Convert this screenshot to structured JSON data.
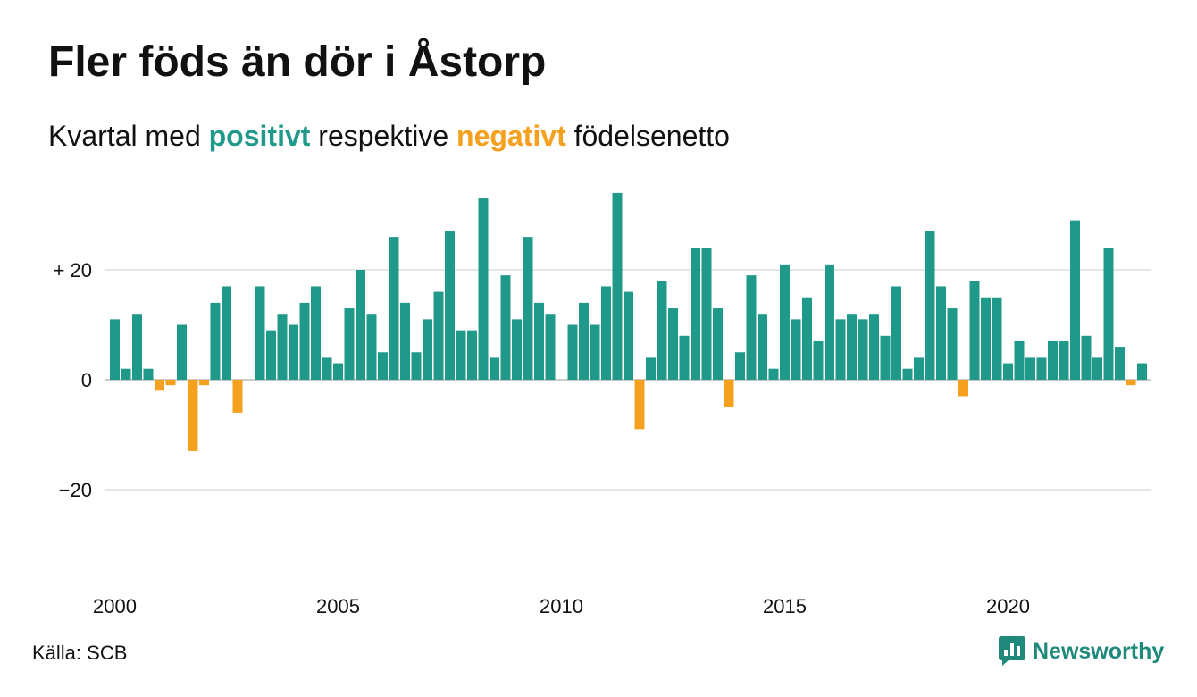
{
  "header": {
    "title": "Fler föds än dör i Åstorp",
    "subtitle_pre": "Kvartal med",
    "subtitle_pos": "positivt",
    "subtitle_mid": "respektive",
    "subtitle_neg": "negativt",
    "subtitle_post": "födelsenetto"
  },
  "footer": {
    "source": "Källa: SCB",
    "brand": "Newsworthy"
  },
  "colors": {
    "positive": "#1f9a8a",
    "negative": "#f5a01e",
    "grid": "#dddddd",
    "brand": "#1f8a7c"
  },
  "chart_data": {
    "type": "bar",
    "x_start": "2000 Q1",
    "y_tick_values": [
      20,
      0,
      -20
    ],
    "y_tick_labels": [
      "+ 20",
      "0",
      "−20"
    ],
    "x_tick_labels": [
      "2000",
      "2005",
      "2010",
      "2015",
      "2020"
    ],
    "ylim": [
      -38,
      38
    ],
    "grid": true,
    "values": [
      11,
      2,
      12,
      2,
      -2,
      -1,
      10,
      -13,
      -1,
      14,
      17,
      -6,
      0,
      17,
      9,
      12,
      10,
      14,
      17,
      4,
      3,
      13,
      20,
      12,
      5,
      26,
      14,
      5,
      11,
      16,
      27,
      9,
      9,
      33,
      4,
      19,
      11,
      26,
      14,
      12,
      0,
      10,
      14,
      10,
      17,
      34,
      16,
      -9,
      4,
      18,
      13,
      8,
      24,
      24,
      13,
      -5,
      5,
      19,
      12,
      2,
      21,
      11,
      15,
      7,
      21,
      11,
      12,
      11,
      12,
      8,
      17,
      2,
      4,
      27,
      17,
      13,
      -3,
      18,
      15,
      15,
      3,
      7,
      4,
      4,
      7,
      7,
      29,
      8,
      4,
      24,
      6,
      -1,
      3
    ]
  }
}
